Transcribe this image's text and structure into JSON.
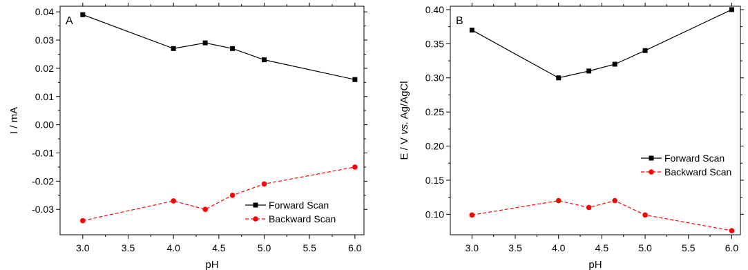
{
  "chart_data": [
    {
      "type": "line",
      "panel_label": "A",
      "xlabel": "pH",
      "ylabel": "I / mA",
      "xlim": [
        2.75,
        6.1
      ],
      "ylim": [
        -0.039,
        0.042
      ],
      "x_ticks": [
        3.0,
        3.5,
        4.0,
        4.5,
        5.0,
        5.5,
        6.0
      ],
      "x_tick_labels": [
        "3.0",
        "3.5",
        "4.0",
        "4.5",
        "5.0",
        "5.5",
        "6.0"
      ],
      "y_ticks": [
        -0.03,
        -0.02,
        -0.01,
        0.0,
        0.01,
        0.02,
        0.03,
        0.04
      ],
      "y_tick_labels": [
        "-0.03",
        "-0.02",
        "-0.01",
        "0.00",
        "0.01",
        "0.02",
        "0.03",
        "0.04"
      ],
      "grid": false,
      "legend_position": "bottom-right",
      "series": [
        {
          "name": "Forward Scan",
          "color": "#000000",
          "marker": "square",
          "line_style": "solid",
          "x": [
            3.0,
            4.0,
            4.35,
            4.65,
            5.0,
            6.0
          ],
          "y": [
            0.039,
            0.027,
            0.029,
            0.027,
            0.023,
            0.016
          ]
        },
        {
          "name": "Backward Scan",
          "color": "#ff0000",
          "marker": "circle",
          "line_style": "dashed",
          "x": [
            3.0,
            4.0,
            4.35,
            4.65,
            5.0,
            6.0
          ],
          "y": [
            -0.034,
            -0.027,
            -0.03,
            -0.025,
            -0.021,
            -0.015
          ]
        }
      ]
    },
    {
      "type": "line",
      "panel_label": "B",
      "xlabel": "pH",
      "ylabel": "E / V vs. Ag/AgCl",
      "xlim": [
        2.75,
        6.1
      ],
      "ylim": [
        0.07,
        0.405
      ],
      "x_ticks": [
        3.0,
        3.5,
        4.0,
        4.5,
        5.0,
        5.5,
        6.0
      ],
      "x_tick_labels": [
        "3.0",
        "3.5",
        "4.0",
        "4.5",
        "5.0",
        "5.5",
        "6.0"
      ],
      "y_ticks": [
        0.1,
        0.15,
        0.2,
        0.25,
        0.3,
        0.35,
        0.4
      ],
      "y_tick_labels": [
        "0.10",
        "0.15",
        "0.20",
        "0.25",
        "0.30",
        "0.35",
        "0.40"
      ],
      "grid": false,
      "legend_position": "center-right",
      "series": [
        {
          "name": "Forward Scan",
          "color": "#000000",
          "marker": "square",
          "line_style": "solid",
          "x": [
            3.0,
            4.0,
            4.35,
            4.65,
            5.0,
            6.0
          ],
          "y": [
            0.37,
            0.3,
            0.31,
            0.32,
            0.34,
            0.4
          ]
        },
        {
          "name": "Backward Scan",
          "color": "#ff0000",
          "marker": "circle",
          "line_style": "dashed",
          "x": [
            3.0,
            4.0,
            4.35,
            4.65,
            5.0,
            6.0
          ],
          "y": [
            0.099,
            0.12,
            0.11,
            0.12,
            0.099,
            0.076
          ]
        }
      ]
    }
  ]
}
